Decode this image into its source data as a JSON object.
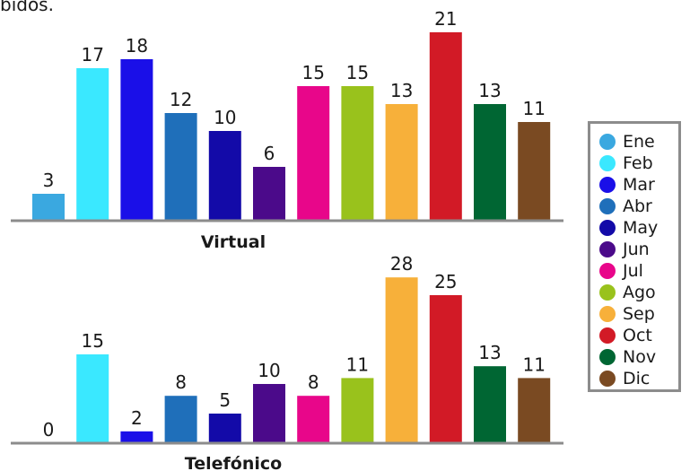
{
  "top_fragment": "bidos.",
  "chart_data": [
    {
      "type": "bar",
      "title": "Virtual",
      "categories": [
        "Ene",
        "Feb",
        "Mar",
        "Abr",
        "May",
        "Jun",
        "Jul",
        "Ago",
        "Sep",
        "Oct",
        "Nov",
        "Dic"
      ],
      "values": [
        3,
        17,
        18,
        12,
        10,
        6,
        15,
        15,
        13,
        21,
        13,
        11
      ],
      "colors": [
        "#3aa8e0",
        "#3ae8ff",
        "#1a0fe8",
        "#1f6fba",
        "#130aa8",
        "#4b0a8a",
        "#e8068a",
        "#99c21c",
        "#f7b03a",
        "#d21a26",
        "#006633",
        "#7a4a22"
      ]
    },
    {
      "type": "bar",
      "title": "Telefónico",
      "categories": [
        "Ene",
        "Feb",
        "Mar",
        "Abr",
        "May",
        "Jun",
        "Jul",
        "Ago",
        "Sep",
        "Oct",
        "Nov",
        "Dic"
      ],
      "values": [
        0,
        15,
        2,
        8,
        5,
        10,
        8,
        11,
        28,
        25,
        13,
        11
      ],
      "colors": [
        "#3aa8e0",
        "#3ae8ff",
        "#1a0fe8",
        "#1f6fba",
        "#130aa8",
        "#4b0a8a",
        "#e8068a",
        "#99c21c",
        "#f7b03a",
        "#d21a26",
        "#006633",
        "#7a4a22"
      ]
    }
  ],
  "legend": {
    "items": [
      {
        "label": "Ene",
        "color": "#3aa8e0"
      },
      {
        "label": "Feb",
        "color": "#3ae8ff"
      },
      {
        "label": "Mar",
        "color": "#1a0fe8"
      },
      {
        "label": "Abr",
        "color": "#1f6fba"
      },
      {
        "label": "May",
        "color": "#130aa8"
      },
      {
        "label": "Jun",
        "color": "#4b0a8a"
      },
      {
        "label": "Jul",
        "color": "#e8068a"
      },
      {
        "label": "Ago",
        "color": "#99c21c"
      },
      {
        "label": "Sep",
        "color": "#f7b03a"
      },
      {
        "label": "Oct",
        "color": "#d21a26"
      },
      {
        "label": "Nov",
        "color": "#006633"
      },
      {
        "label": "Dic",
        "color": "#7a4a22"
      }
    ]
  }
}
